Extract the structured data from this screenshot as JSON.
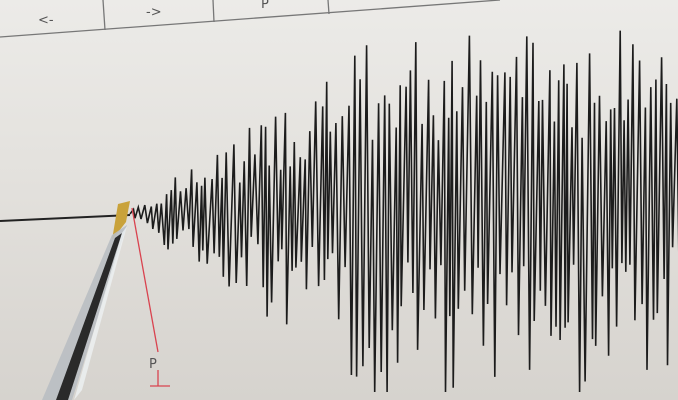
{
  "header_table": {
    "cells": [
      "<-",
      "->",
      "P",
      ""
    ]
  },
  "marker": {
    "label": "P"
  },
  "colors": {
    "paper": "#e9e7e3",
    "trace": "#1c1c1c",
    "marker_line": "#d9434f",
    "pen_tip": "#c9a23a"
  }
}
